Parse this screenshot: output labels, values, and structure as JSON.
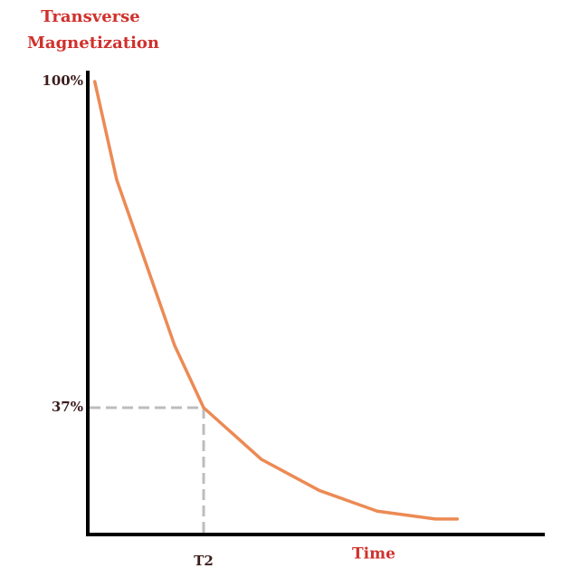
{
  "chart_data": {
    "type": "line",
    "y_label": "Transverse Magnetization",
    "x_label": "Time",
    "x": [
      0.06,
      0.25,
      0.5,
      0.75,
      1,
      1.5,
      2,
      2.5,
      3,
      3.19
    ],
    "series": [
      {
        "color": "#ec8a54",
        "values": [
          100,
          81,
          65,
          49,
          37,
          27,
          21,
          17,
          15.5,
          15.5
        ]
      }
    ],
    "xlim": [
      0,
      3.93
    ],
    "ylim": [
      12.5,
      100
    ],
    "xticks": [
      {
        "value": 1,
        "label": "T2"
      }
    ],
    "yticks": [
      {
        "value": 37,
        "label": "37%"
      },
      {
        "value": 100,
        "label": "100%"
      }
    ]
  }
}
